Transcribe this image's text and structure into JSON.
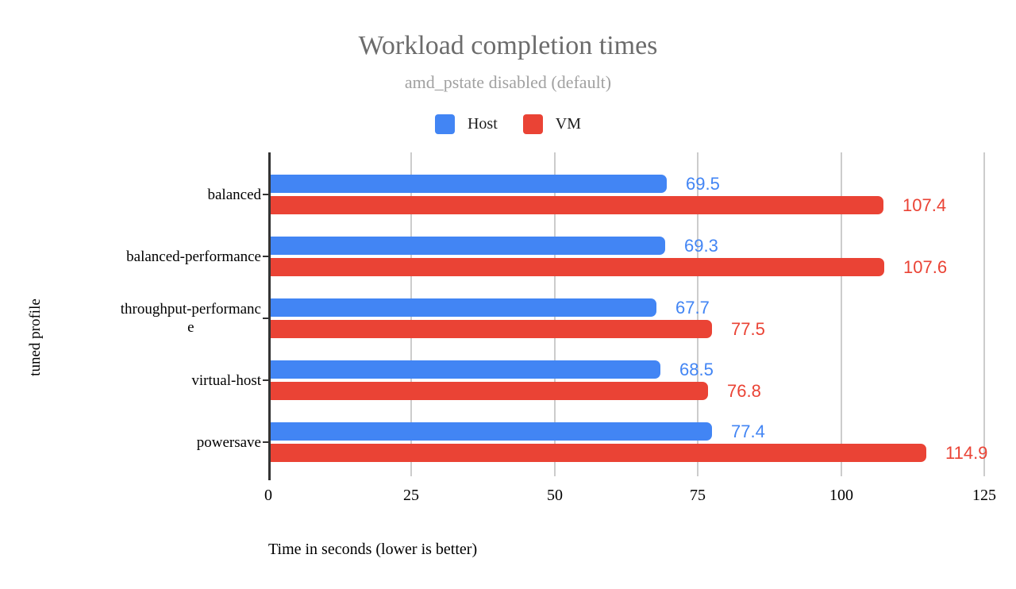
{
  "chart_data": {
    "type": "bar",
    "orientation": "horizontal",
    "title": "Workload completion times",
    "subtitle": "amd_pstate disabled (default)",
    "xlabel": "Time in seconds (lower is better)",
    "ylabel": "tuned profile",
    "categories": [
      "balanced",
      "balanced-performance",
      "throughput-performance",
      "virtual-host",
      "powersave"
    ],
    "category_display_lines": [
      [
        "balanced"
      ],
      [
        "balanced-performance"
      ],
      [
        "throughput-performanc",
        "e"
      ],
      [
        "virtual-host"
      ],
      [
        "powersave"
      ]
    ],
    "series": [
      {
        "name": "Host",
        "color": "#4285F4",
        "values": [
          69.5,
          69.3,
          67.7,
          68.5,
          77.4
        ]
      },
      {
        "name": "VM",
        "color": "#EA4335",
        "values": [
          107.4,
          107.6,
          77.5,
          76.8,
          114.9
        ]
      }
    ],
    "value_labels": [
      "69.5",
      "107.4",
      "69.3",
      "107.6",
      "67.7",
      "77.5",
      "68.5",
      "76.8",
      "77.4",
      "114.9"
    ],
    "xlim": [
      0,
      125
    ],
    "xticks": [
      "0",
      "25",
      "50",
      "75",
      "100",
      "125"
    ],
    "grid": true,
    "legend_position": "top"
  },
  "colors": {
    "background": "#ffffff",
    "title": "#6c6c6c",
    "subtitle": "#a1a1a1",
    "axis_line": "#333333",
    "gridline": "#cccccc",
    "text": "#000000",
    "host_series": "#4285F4",
    "vm_series": "#EA4335"
  }
}
